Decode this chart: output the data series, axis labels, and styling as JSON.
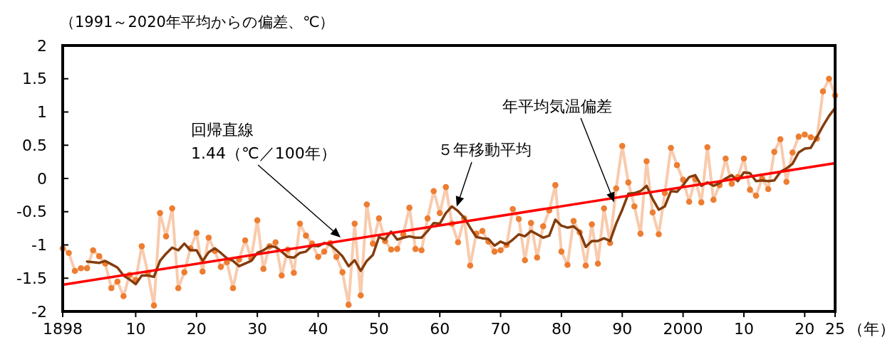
{
  "chart_data": {
    "type": "line",
    "ylabel": "（1991～2020年平均からの偏差、℃）",
    "xlabel": "（年）",
    "xlim": [
      1898,
      2025
    ],
    "ylim": [
      -2,
      2
    ],
    "xticks": [
      {
        "value": 1898,
        "label": "1898"
      },
      {
        "value": 1910,
        "label": "10"
      },
      {
        "value": 1920,
        "label": "20"
      },
      {
        "value": 1930,
        "label": "30"
      },
      {
        "value": 1940,
        "label": "40"
      },
      {
        "value": 1950,
        "label": "50"
      },
      {
        "value": 1960,
        "label": "60"
      },
      {
        "value": 1970,
        "label": "70"
      },
      {
        "value": 1980,
        "label": "80"
      },
      {
        "value": 1990,
        "label": "90"
      },
      {
        "value": 2000,
        "label": "2000"
      },
      {
        "value": 2010,
        "label": "10"
      },
      {
        "value": 2020,
        "label": "20"
      },
      {
        "value": 2025,
        "label": "25"
      }
    ],
    "yticks": [
      -2,
      -1.5,
      -1,
      -0.5,
      0,
      0.5,
      1,
      1.5,
      2
    ],
    "grid": false,
    "annotations": [
      "年平均気温偏差",
      "５年移動平均",
      "回帰直線\n1.44（℃／100年）"
    ],
    "series": [
      {
        "marker": "circle",
        "color": "#ed7d31",
        "x": [
          1898,
          1899,
          1900,
          1901,
          1902,
          1903,
          1904,
          1905,
          1906,
          1907,
          1908,
          1909,
          1910,
          1911,
          1912,
          1913,
          1914,
          1915,
          1916,
          1917,
          1918,
          1919,
          1920,
          1921,
          1922,
          1923,
          1924,
          1925,
          1926,
          1927,
          1928,
          1929,
          1930,
          1931,
          1932,
          1933,
          1934,
          1935,
          1936,
          1937,
          1938,
          1939,
          1940,
          1941,
          1942,
          1943,
          1944,
          1945,
          1946,
          1947,
          1948,
          1949,
          1950,
          1951,
          1952,
          1953,
          1954,
          1955,
          1956,
          1957,
          1958,
          1959,
          1960,
          1961,
          1962,
          1963,
          1964,
          1965,
          1966,
          1967,
          1968,
          1969,
          1970,
          1971,
          1972,
          1973,
          1974,
          1975,
          1976,
          1977,
          1978,
          1979,
          1980,
          1981,
          1982,
          1983,
          1984,
          1985,
          1986,
          1987,
          1988,
          1989,
          1990,
          1991,
          1992,
          1993,
          1994,
          1995,
          1996,
          1997,
          1998,
          1999,
          2000,
          2001,
          2002,
          2003,
          2004,
          2005,
          2006,
          2007,
          2008,
          2009,
          2010,
          2011,
          2012,
          2013,
          2014,
          2015,
          2016,
          2017,
          2018,
          2019,
          2020,
          2021,
          2022,
          2023,
          2024,
          2025
        ],
        "values": [
          -1.05,
          -1.12,
          -1.39,
          -1.35,
          -1.35,
          -1.08,
          -1.17,
          -1.28,
          -1.65,
          -1.55,
          -1.77,
          -1.45,
          -1.53,
          -1.02,
          -1.42,
          -1.91,
          -0.52,
          -0.87,
          -0.45,
          -1.65,
          -1.41,
          -1.05,
          -0.82,
          -1.4,
          -0.89,
          -1.09,
          -1.33,
          -1.26,
          -1.65,
          -1.22,
          -0.93,
          -1.2,
          -0.63,
          -1.36,
          -1.02,
          -0.96,
          -1.46,
          -1.07,
          -1.42,
          -0.68,
          -0.86,
          -0.98,
          -1.18,
          -1.1,
          -0.97,
          -1.18,
          -1.41,
          -1.9,
          -0.68,
          -1.76,
          -0.39,
          -0.98,
          -0.6,
          -0.94,
          -1.07,
          -1.06,
          -0.84,
          -0.44,
          -1.06,
          -1.08,
          -0.6,
          -0.19,
          -0.52,
          -0.13,
          -0.68,
          -0.96,
          -0.6,
          -1.31,
          -0.83,
          -0.79,
          -0.95,
          -1.1,
          -1.08,
          -1.0,
          -0.46,
          -0.61,
          -1.23,
          -0.67,
          -1.19,
          -0.72,
          -0.48,
          -0.1,
          -1.1,
          -1.3,
          -0.64,
          -0.81,
          -1.31,
          -0.69,
          -1.28,
          -0.45,
          -0.97,
          -0.15,
          0.49,
          -0.06,
          -0.42,
          -0.83,
          0.26,
          -0.51,
          -0.84,
          -0.22,
          0.46,
          0.2,
          -0.02,
          -0.35,
          -0.01,
          -0.36,
          0.47,
          -0.32,
          -0.1,
          0.3,
          -0.08,
          0.02,
          0.3,
          -0.17,
          -0.26,
          0.0,
          -0.16,
          0.4,
          0.59,
          -0.05,
          0.39,
          0.63,
          0.66,
          0.62,
          0.6,
          1.31,
          1.5,
          1.25
        ]
      },
      {
        "marker": "none",
        "color": "#843c0c",
        "x": [
          1902,
          1903,
          1904,
          1905,
          1906,
          1907,
          1908,
          1909,
          1910,
          1911,
          1912,
          1913,
          1914,
          1915,
          1916,
          1917,
          1918,
          1919,
          1920,
          1921,
          1922,
          1923,
          1924,
          1925,
          1926,
          1927,
          1928,
          1929,
          1930,
          1931,
          1932,
          1933,
          1934,
          1935,
          1936,
          1937,
          1938,
          1939,
          1940,
          1941,
          1942,
          1943,
          1944,
          1945,
          1946,
          1947,
          1948,
          1949,
          1950,
          1951,
          1952,
          1953,
          1954,
          1955,
          1956,
          1957,
          1958,
          1959,
          1960,
          1961,
          1962,
          1963,
          1964,
          1965,
          1966,
          1967,
          1968,
          1969,
          1970,
          1971,
          1972,
          1973,
          1974,
          1975,
          1976,
          1977,
          1978,
          1979,
          1980,
          1981,
          1982,
          1983,
          1984,
          1985,
          1986,
          1987,
          1988,
          1989,
          1990,
          1991,
          1992,
          1993,
          1994,
          1995,
          1996,
          1997,
          1998,
          1999,
          2000,
          2001,
          2002,
          2003,
          2004,
          2005,
          2006,
          2007,
          2008,
          2009,
          2010,
          2011,
          2012,
          2013,
          2014,
          2015,
          2016,
          2017,
          2018,
          2019,
          2020,
          2021,
          2022,
          2023,
          2024,
          2025
        ],
        "values": [
          -1.25,
          -1.26,
          -1.27,
          -1.24,
          -1.29,
          -1.34,
          -1.46,
          -1.52,
          -1.59,
          -1.46,
          -1.46,
          -1.48,
          -1.24,
          -1.13,
          -1.04,
          -1.08,
          -0.98,
          -1.08,
          -1.08,
          -1.24,
          -1.11,
          -1.05,
          -1.12,
          -1.2,
          -1.24,
          -1.32,
          -1.28,
          -1.24,
          -1.12,
          -1.08,
          -1.02,
          -1.03,
          -1.1,
          -1.18,
          -1.19,
          -1.12,
          -1.1,
          -1.01,
          -1.02,
          -0.97,
          -1.0,
          -1.08,
          -1.17,
          -1.32,
          -1.23,
          -1.39,
          -1.24,
          -1.15,
          -0.88,
          -0.92,
          -0.8,
          -0.92,
          -0.89,
          -0.87,
          -0.89,
          -0.89,
          -0.79,
          -0.67,
          -0.68,
          -0.52,
          -0.42,
          -0.49,
          -0.59,
          -0.74,
          -0.88,
          -0.9,
          -0.91,
          -1.01,
          -0.95,
          -0.99,
          -0.92,
          -0.84,
          -0.87,
          -0.79,
          -0.84,
          -0.89,
          -0.86,
          -0.62,
          -0.71,
          -0.74,
          -0.72,
          -0.8,
          -1.03,
          -0.94,
          -0.94,
          -0.9,
          -0.94,
          -0.68,
          -0.47,
          -0.23,
          -0.22,
          -0.19,
          -0.11,
          -0.31,
          -0.47,
          -0.42,
          -0.19,
          -0.2,
          -0.1,
          0.02,
          0.05,
          -0.11,
          -0.06,
          -0.11,
          -0.07,
          0.0,
          0.05,
          -0.04,
          0.09,
          0.08,
          -0.04,
          -0.03,
          -0.04,
          -0.03,
          0.1,
          0.15,
          0.22,
          0.39,
          0.45,
          0.46,
          0.62,
          0.79,
          0.94,
          1.06
        ]
      },
      {
        "marker": "none",
        "color": "#ff0000",
        "x": [
          1898,
          2025
        ],
        "values": [
          -1.6,
          0.23
        ]
      }
    ]
  }
}
